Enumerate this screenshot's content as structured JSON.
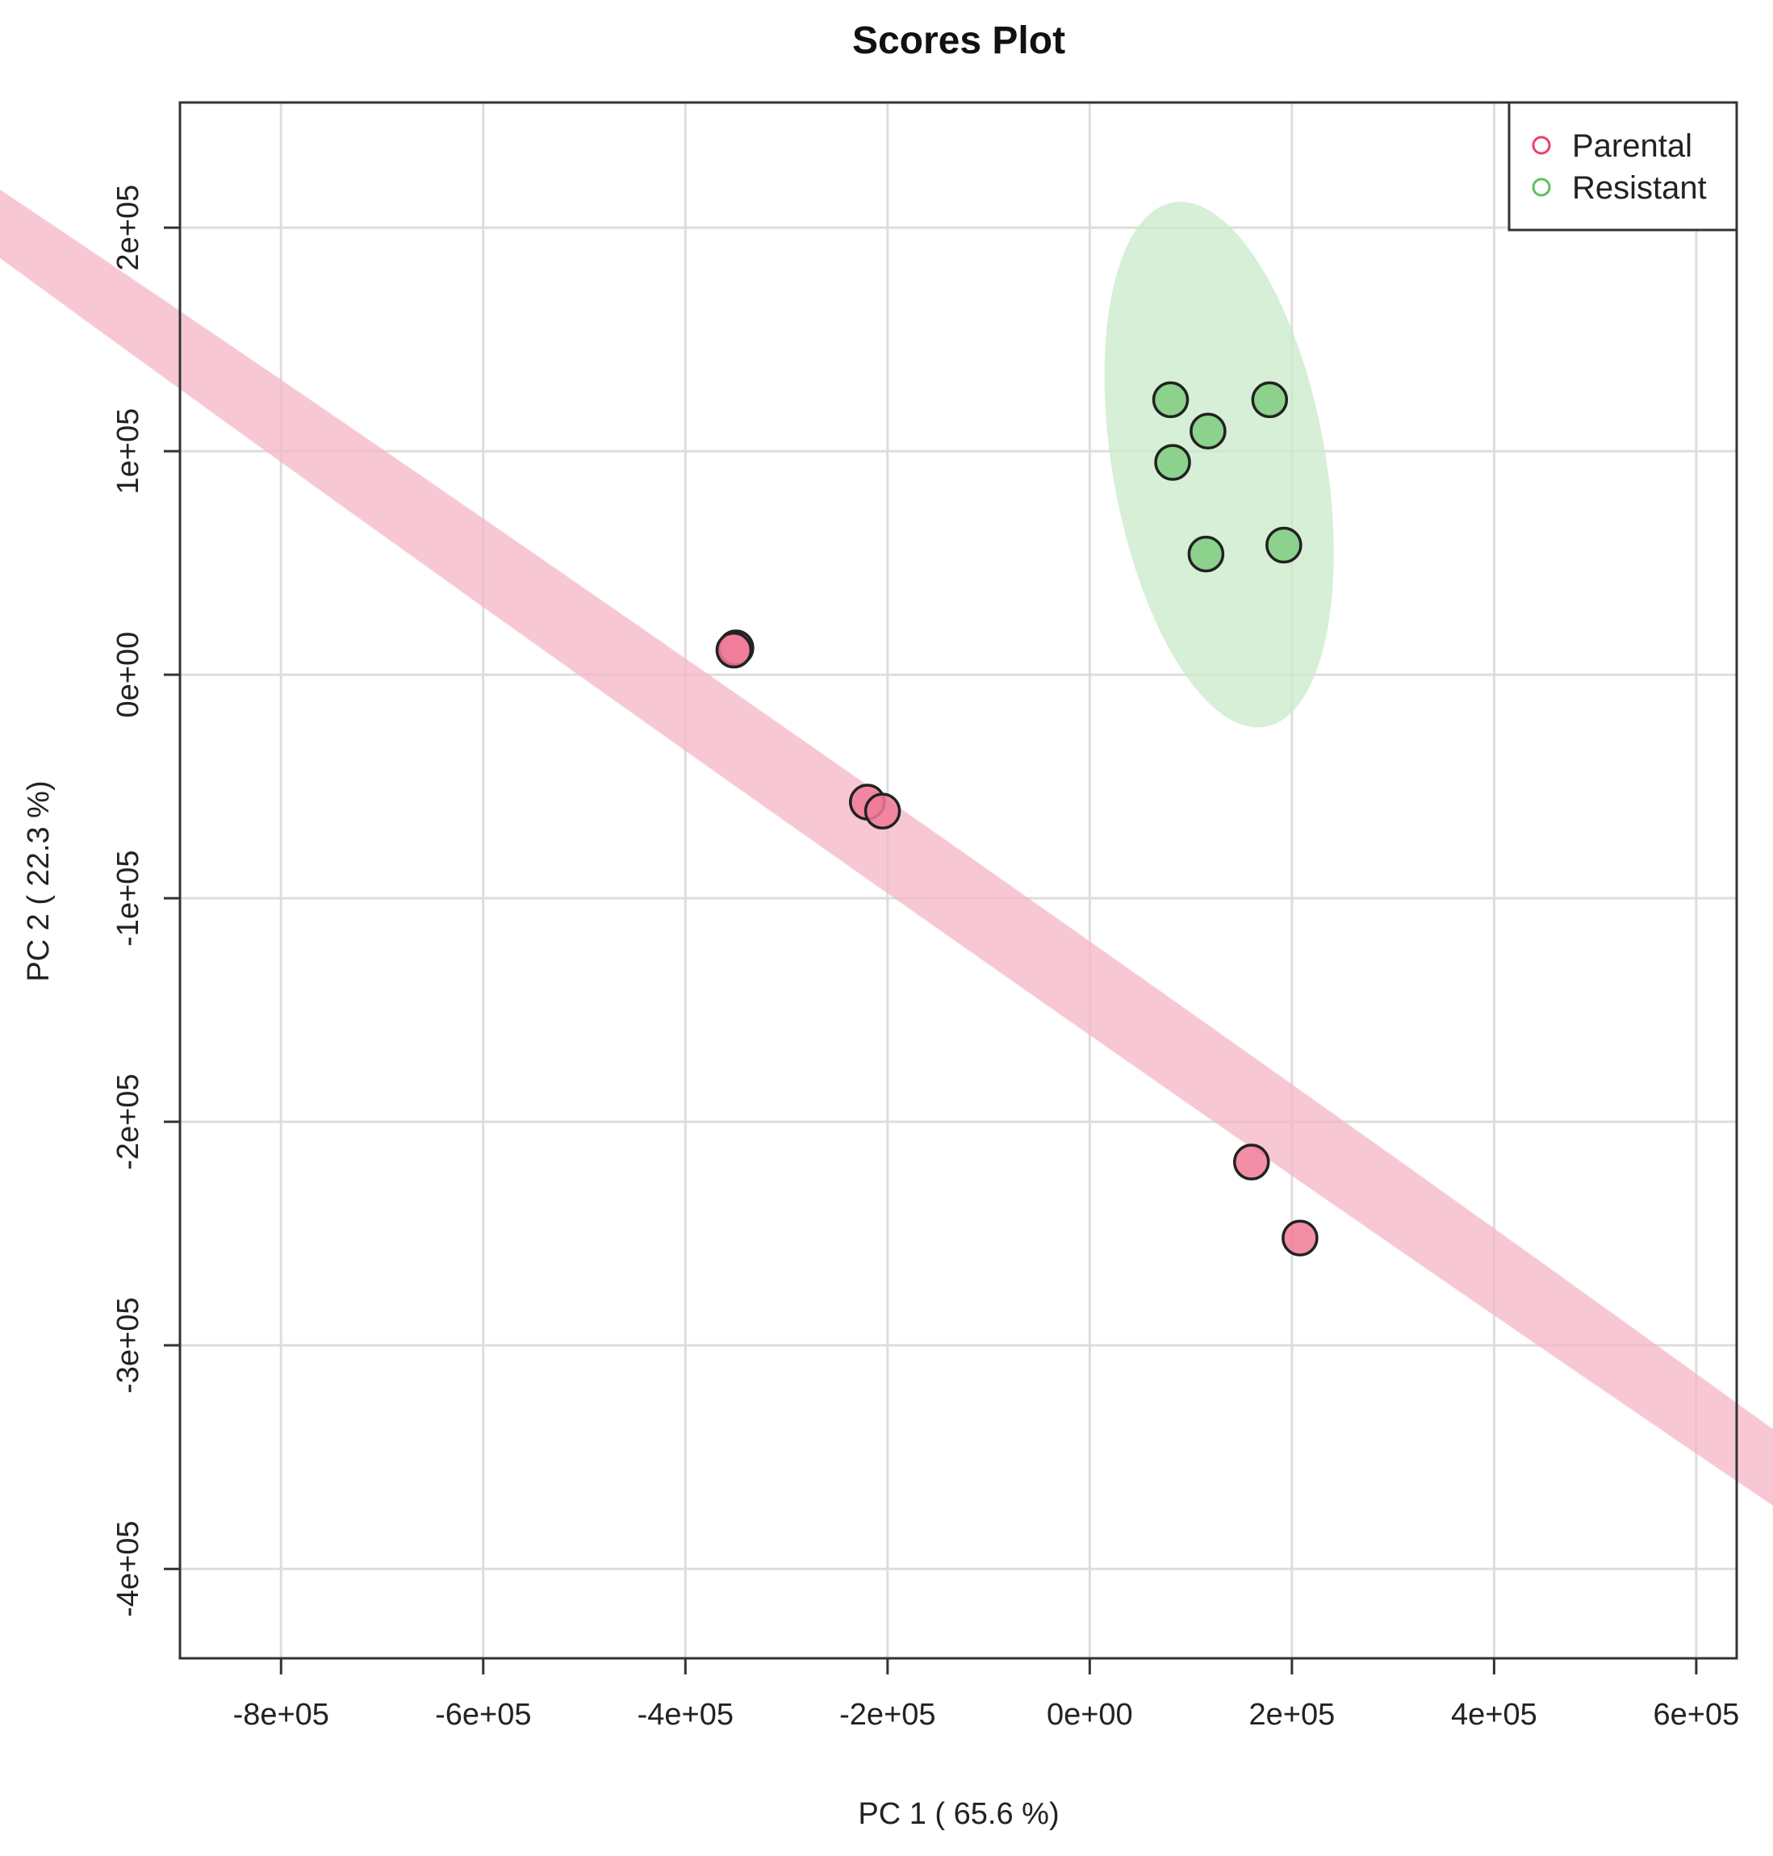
{
  "chart_data": {
    "type": "scatter",
    "title": "Scores Plot",
    "xlabel": "PC 1 ( 65.6 %)",
    "ylabel": "PC 2 ( 22.3 %)",
    "xlim": [
      -900000,
      640000
    ],
    "ylim": [
      -440000,
      256000
    ],
    "grid": true,
    "x_ticks": [
      -800000,
      -600000,
      -400000,
      -200000,
      0,
      200000,
      400000,
      600000
    ],
    "x_tick_labels": [
      "-8e+05",
      "-6e+05",
      "-4e+05",
      "-2e+05",
      "0e+00",
      "2e+05",
      "4e+05",
      "6e+05"
    ],
    "y_ticks": [
      -400000,
      -300000,
      -200000,
      -100000,
      0,
      100000,
      200000
    ],
    "y_tick_labels": [
      "-4e+05",
      "-3e+05",
      "-2e+05",
      "-1e+05",
      "0e+00",
      "1e+05",
      "2e+05"
    ],
    "legend": {
      "position": "top-right",
      "entries": [
        {
          "name": "Parental",
          "color": "#e8416b"
        },
        {
          "name": "Resistant",
          "color": "#5cc15c"
        }
      ]
    },
    "series": [
      {
        "name": "Parental",
        "color": "#e8416b",
        "fill": "#f07a96",
        "points": [
          {
            "x": -350000,
            "y": 12000
          },
          {
            "x": -352000,
            "y": 11000
          },
          {
            "x": -220000,
            "y": -57000
          },
          {
            "x": -205000,
            "y": -61000
          },
          {
            "x": 160000,
            "y": -218000
          },
          {
            "x": 208000,
            "y": -252000
          }
        ],
        "ellipse": {
          "cx": -130000,
          "cy": -99000,
          "rx": 807000,
          "ry": 16000,
          "angle_deg": -35.07,
          "fill": "#f4b6c6"
        }
      },
      {
        "name": "Resistant",
        "color": "#5cc15c",
        "fill": "#7fcc7f",
        "points": [
          {
            "x": 80000,
            "y": 123000
          },
          {
            "x": 178000,
            "y": 123000
          },
          {
            "x": 117000,
            "y": 109000
          },
          {
            "x": 82000,
            "y": 95000
          },
          {
            "x": 115000,
            "y": 54000
          },
          {
            "x": 192000,
            "y": 58000
          }
        ],
        "ellipse": {
          "cx": 128000,
          "cy": 94000,
          "rx": 112000,
          "ry": 77000,
          "angle_deg": -80,
          "fill": "#c8eac8"
        }
      }
    ]
  }
}
